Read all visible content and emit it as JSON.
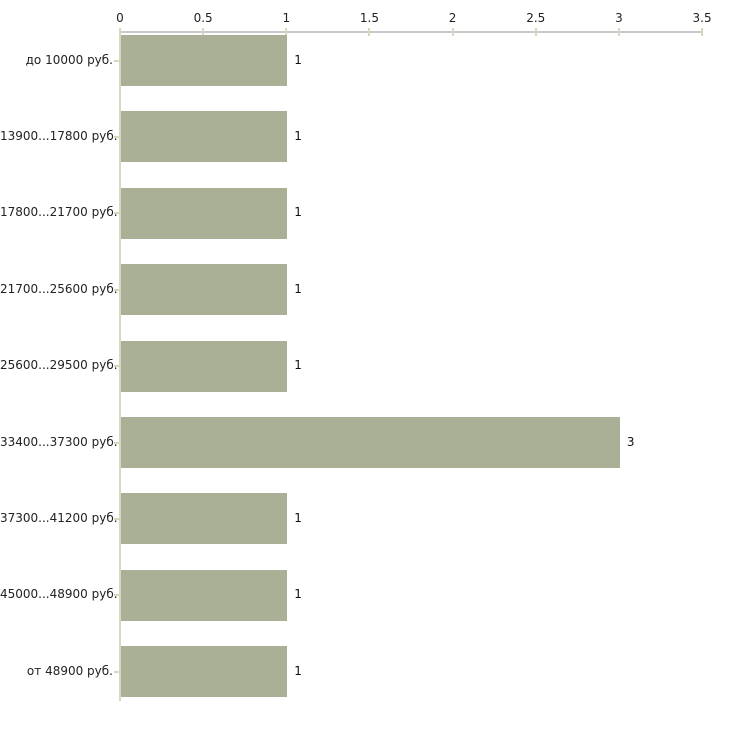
{
  "chart_data": {
    "type": "bar",
    "orientation": "horizontal",
    "title": "",
    "xlabel": "",
    "ylabel": "",
    "categories": [
      "до 10000 руб.",
      "13900...17800 руб.",
      "17800...21700 руб.",
      "21700...25600 руб.",
      "25600...29500 руб.",
      "33400...37300 руб.",
      "37300...41200 руб.",
      "45000...48900 руб.",
      "от 48900 руб."
    ],
    "values": [
      1,
      1,
      1,
      1,
      1,
      3,
      1,
      1,
      1
    ],
    "value_labels": [
      "1",
      "1",
      "1",
      "1",
      "1",
      "3",
      "1",
      "1",
      "1"
    ],
    "x_ticks": [
      0,
      0.5,
      1,
      1.5,
      2,
      2.5,
      3,
      3.5
    ],
    "x_tick_labels": [
      "0",
      "0.5",
      "1",
      "1.5",
      "2",
      "2.5",
      "3",
      "3.5"
    ],
    "xlim": [
      0,
      3.5
    ],
    "x_axis_position": "top",
    "grid": false,
    "legend": false
  },
  "colors": {
    "bar_fill": "#a9b095",
    "top_axis_line": "#c9c9c9",
    "left_axis_line": "#d6d8c4",
    "tick_mark": "#d6d8bf",
    "label_text": "#222222",
    "background": "#ffffff"
  }
}
